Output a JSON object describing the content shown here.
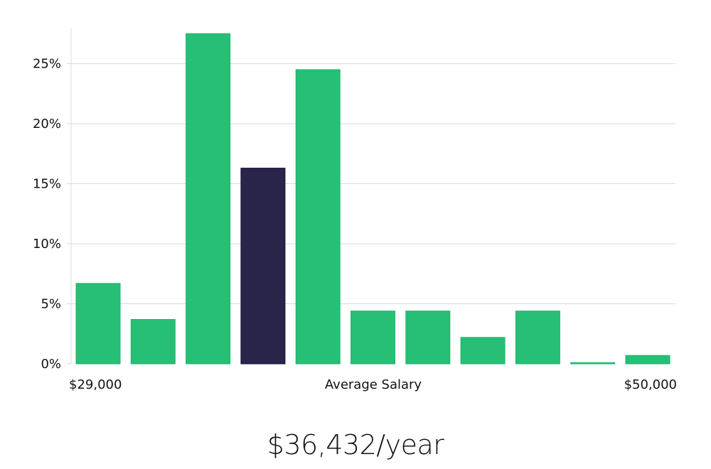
{
  "chart_data": {
    "type": "bar",
    "title": "",
    "xlabel": "Average Salary",
    "ylabel": "",
    "x_range_labels": {
      "min": "$29,000",
      "max": "$50,000"
    },
    "bins": 11,
    "values": [
      6.7,
      3.7,
      27.5,
      16.3,
      24.5,
      4.4,
      4.4,
      2.2,
      4.4,
      0.1,
      0.7
    ],
    "highlight_index": 3,
    "ylim": [
      0,
      29
    ],
    "yticks": [
      0,
      5,
      10,
      15,
      20,
      25
    ],
    "ytick_labels": [
      "0%",
      "5%",
      "10%",
      "15%",
      "20%",
      "25%"
    ],
    "grid": true,
    "colors": {
      "bar": "#27bf75",
      "highlight": "#28244a",
      "grid": "#d9d9d9",
      "axis": "#dddddd"
    }
  },
  "summary": {
    "salary_label": "$36,432/year"
  }
}
